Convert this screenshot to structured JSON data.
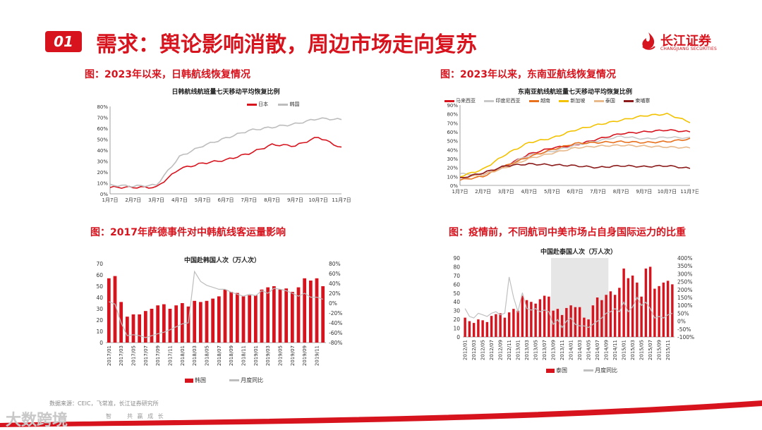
{
  "header": {
    "badge": "01",
    "title": "需求：舆论影响消散，周边市场走向复苏"
  },
  "logo": {
    "name": "长江证券",
    "en": "CHANGJIANG SECURITIES"
  },
  "charts": [
    {
      "section_title": "图：2023年以来，日韩航线恢复情况",
      "chart_title": "日韩航线航班量七天移动平均恢复比例",
      "legend": [
        "日本",
        "韩国"
      ],
      "chart_data": {
        "type": "line",
        "x": [
          "1月7日",
          "2月7日",
          "3月7日",
          "4月7日",
          "5月7日",
          "6月7日",
          "7月7日",
          "8月7日",
          "9月7日",
          "10月7日",
          "11月7日"
        ],
        "yticks": [
          "0%",
          "10%",
          "20%",
          "30%",
          "40%",
          "50%",
          "60%",
          "70%",
          "80%"
        ],
        "ylim": [
          0,
          80
        ],
        "series": [
          {
            "name": "日本",
            "color": "#d7141e",
            "values": [
              6,
              6,
              6,
              23,
              28,
              31,
              37,
              45,
              44,
              52,
              42
            ]
          },
          {
            "name": "韩国",
            "color": "#bdbdbd",
            "values": [
              8,
              7,
              8,
              34,
              44,
              51,
              58,
              61,
              64,
              69,
              68
            ]
          }
        ]
      }
    },
    {
      "section_title": "图：2023年以来，东南亚航线恢复情况",
      "chart_title": "东南亚航线航班量七天移动平均恢复比例",
      "legend": [
        "马来西亚",
        "印度尼西亚",
        "越南",
        "新加坡",
        "泰国",
        "柬埔寨"
      ],
      "chart_data": {
        "type": "line",
        "x": [
          "1月7日",
          "2月7日",
          "3月7日",
          "4月7日",
          "5月7日",
          "6月7日",
          "7月7日",
          "8月7日",
          "9月7日",
          "10月7日",
          "11月7日"
        ],
        "yticks": [
          "0%",
          "10%",
          "20%",
          "30%",
          "40%",
          "50%",
          "60%",
          "70%",
          "80%",
          "90%"
        ],
        "ylim": [
          0,
          90
        ],
        "series": [
          {
            "name": "马来西亚",
            "color": "#d7141e",
            "values": [
              8,
              14,
              22,
              35,
              42,
              45,
              52,
              58,
              60,
              62,
              60
            ]
          },
          {
            "name": "印度尼西亚",
            "color": "#c8c8c8",
            "values": [
              13,
              12,
              22,
              34,
              38,
              45,
              50,
              55,
              52,
              54,
              53
            ]
          },
          {
            "name": "越南",
            "color": "#e8711e",
            "values": [
              6,
              10,
              22,
              32,
              40,
              47,
              48,
              49,
              48,
              49,
              52
            ]
          },
          {
            "name": "新加坡",
            "color": "#f2c200",
            "values": [
              10,
              18,
              35,
              48,
              53,
              62,
              68,
              73,
              78,
              80,
              71
            ]
          },
          {
            "name": "泰国",
            "color": "#e8b98b",
            "values": [
              8,
              12,
              20,
              30,
              36,
              42,
              44,
              45,
              44,
              43,
              42
            ]
          },
          {
            "name": "柬埔寨",
            "color": "#8b1a1a",
            "values": [
              8,
              14,
              22,
              24,
              23,
              22,
              20,
              22,
              21,
              22,
              19
            ]
          }
        ]
      }
    },
    {
      "section_title": "图：2017年萨德事件对中韩航线客运量影响",
      "chart_title": "中国赴韩国人次（万人次）",
      "legend": [
        "韩国",
        "月度同比"
      ],
      "chart_data": {
        "type": "bar",
        "categories": [
          "2017/01",
          "2017/02",
          "2017/03",
          "2017/04",
          "2017/05",
          "2017/06",
          "2017/07",
          "2017/08",
          "2017/09",
          "2017/10",
          "2017/11",
          "2017/12",
          "2018/01",
          "2018/02",
          "2018/03",
          "2018/04",
          "2018/05",
          "2018/06",
          "2018/07",
          "2018/08",
          "2018/09",
          "2018/10",
          "2018/11",
          "2018/12",
          "2019/01",
          "2019/02",
          "2019/03",
          "2019/04",
          "2019/05",
          "2019/06",
          "2019/07",
          "2019/08",
          "2019/09",
          "2019/10",
          "2019/11",
          "2019/12"
        ],
        "xticks": [
          "2017/01",
          "2017/03",
          "2017/05",
          "2017/07",
          "2017/09",
          "2017/11",
          "2018/01",
          "2018/03",
          "2018/05",
          "2018/07",
          "2018/09",
          "2018/11",
          "2019/01",
          "2019/03",
          "2019/05",
          "2019/07",
          "2019/09",
          "2019/11"
        ],
        "yticks_left": [
          "0",
          "10",
          "20",
          "30",
          "40",
          "50",
          "60",
          "70"
        ],
        "yticks_right": [
          "-80%",
          "-60%",
          "-40%",
          "-20%",
          "0%",
          "20%",
          "40%",
          "60%",
          "80%"
        ],
        "ylim": [
          0,
          70
        ],
        "ylim_right": [
          -80,
          80
        ],
        "series": [
          {
            "name": "韩国",
            "type": "bar",
            "color": "#d7141e",
            "values": [
              57,
              59,
              36,
              23,
              25,
              25,
              28,
              30,
              33,
              34,
              30,
              33,
              35,
              32,
              37,
              36,
              37,
              39,
              41,
              47,
              45,
              44,
              41,
              42,
              42,
              47,
              49,
              50,
              47,
              48,
              45,
              49,
              57,
              55,
              57,
              50
            ]
          },
          {
            "name": "月度同比",
            "type": "line",
            "color": "#bdbdbd",
            "values": [
              3,
              -2,
              -40,
              -66,
              -64,
              -66,
              -70,
              -66,
              -62,
              -59,
              -54,
              -48,
              -42,
              -40,
              64,
              44,
              36,
              32,
              28,
              28,
              22,
              18,
              14,
              18,
              15,
              25,
              20,
              30,
              28,
              25,
              20,
              14,
              20,
              12,
              12,
              8
            ]
          }
        ]
      }
    },
    {
      "section_title": "图：疫情前，不同航司中美市场占自身国际运力的比重",
      "chart_title": "中国赴泰国人次（万人次）",
      "legend": [
        "泰国",
        "月度同比"
      ],
      "chart_data": {
        "type": "bar",
        "categories": [
          "2012/01",
          "2012/02",
          "2012/03",
          "2012/04",
          "2012/05",
          "2012/06",
          "2012/07",
          "2012/08",
          "2012/09",
          "2012/10",
          "2012/11",
          "2012/12",
          "2013/01",
          "2013/02",
          "2013/03",
          "2013/04",
          "2013/05",
          "2013/06",
          "2013/07",
          "2013/08",
          "2013/09",
          "2013/10",
          "2013/11",
          "2013/12",
          "2014/01",
          "2014/02",
          "2014/03",
          "2014/04",
          "2014/05",
          "2014/06",
          "2014/07",
          "2014/08",
          "2014/09",
          "2014/10",
          "2014/11",
          "2014/12",
          "2015/01",
          "2015/02",
          "2015/03",
          "2015/04",
          "2015/05",
          "2015/06",
          "2015/07",
          "2015/08",
          "2015/09",
          "2015/10",
          "2015/11",
          "2015/12"
        ],
        "xticks": [
          "2012/01",
          "2012/03",
          "2012/05",
          "2012/07",
          "2012/09",
          "2012/11",
          "2013/01",
          "2013/03",
          "2013/05",
          "2013/07",
          "2013/09",
          "2013/11",
          "2014/01",
          "2014/03",
          "2014/05",
          "2014/07",
          "2014/09",
          "2014/11",
          "2015/01",
          "2015/03",
          "2015/05",
          "2015/07",
          "2015/09",
          "2015/11"
        ],
        "yticks_left": [
          "0",
          "10",
          "20",
          "30",
          "40",
          "50",
          "60",
          "70",
          "80",
          "90"
        ],
        "yticks_right": [
          "-100%",
          "-50%",
          "0%",
          "50%",
          "100%",
          "150%",
          "200%",
          "250%",
          "300%",
          "350%",
          "400%"
        ],
        "ylim": [
          0,
          90
        ],
        "ylim_right": [
          -100,
          400
        ],
        "shaded_range": [
          "2013/09",
          "2014/09"
        ],
        "series": [
          {
            "name": "泰国",
            "type": "bar",
            "color": "#d7141e",
            "values": [
              22,
              18,
              16,
              20,
              19,
              17,
              24,
              26,
              27,
              22,
              28,
              32,
              30,
              47,
              42,
              40,
              38,
              43,
              47,
              46,
              30,
              32,
              25,
              33,
              36,
              34,
              34,
              22,
              20,
              36,
              45,
              42,
              48,
              52,
              48,
              56,
              78,
              67,
              70,
              62,
              46,
              78,
              80,
              55,
              58,
              62,
              64,
              60
            ]
          },
          {
            "name": "月度同比",
            "type": "line",
            "color": "#c0c0c0",
            "values": [
              80,
              30,
              20,
              50,
              40,
              30,
              50,
              60,
              40,
              50,
              280,
              150,
              60,
              180,
              80,
              70,
              80,
              60,
              70,
              60,
              -20,
              10,
              -40,
              0,
              20,
              -20,
              -30,
              -30,
              -40,
              -20,
              0,
              20,
              50,
              60,
              80,
              60,
              120,
              60,
              90,
              150,
              100,
              120,
              80,
              20,
              30,
              20,
              40,
              50
            ]
          }
        ]
      }
    }
  ],
  "source": "数据来源：CEIC，飞常准，长江证券研究所",
  "footer": {
    "watermark": "大数跨境",
    "sub": "智　　共 赢 成 长"
  }
}
